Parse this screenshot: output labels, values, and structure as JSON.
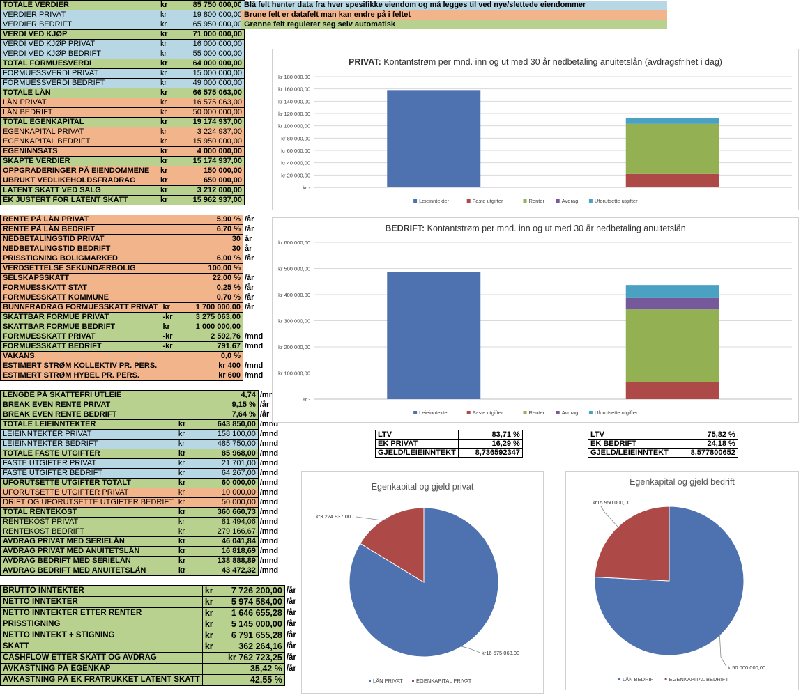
{
  "legend": [
    {
      "text": "Blå felt henter data fra hver spesifikke eiendom og må legges til ved nye/slettede eiendommer",
      "color": "#b6d7e3"
    },
    {
      "text": "Brune felt er datafelt man kan endre på i feltet",
      "color": "#f2b48a"
    },
    {
      "text": "Grønne felt regulerer seg selv automatisk",
      "color": "#b9d18f"
    }
  ],
  "table1": [
    {
      "label": "TOTALE VERDIER",
      "cur": "kr",
      "value": "85 750 000,00",
      "color": "g"
    },
    {
      "label": "VERDIER PRIVAT",
      "cur": "kr",
      "value": "19 800 000,00",
      "color": "b"
    },
    {
      "label": "VERDIER BEDRIFT",
      "cur": "kr",
      "value": "65 950 000,00",
      "color": "b"
    },
    {
      "label": "VERDI VED KJØP",
      "cur": "kr",
      "value": "71 000 000,00",
      "color": "g"
    },
    {
      "label": "VERDI VED KJØP PRIVAT",
      "cur": "kr",
      "value": "16 000 000,00",
      "color": "b"
    },
    {
      "label": "VERDI VED KJØP BEDRIFT",
      "cur": "kr",
      "value": "55 000 000,00",
      "color": "b"
    },
    {
      "label": "TOTAL FORMUESVERDI",
      "cur": "kr",
      "value": "64 000 000,00",
      "color": "g"
    },
    {
      "label": "FORMUESSVERDI PRIVAT",
      "cur": "kr",
      "value": "15 000 000,00",
      "color": "b"
    },
    {
      "label": "FORMUESSVERDI BEDRIFT",
      "cur": "kr",
      "value": "49 000 000,00",
      "color": "b"
    },
    {
      "label": "TOTALE LÅN",
      "cur": "kr",
      "value": "66 575 063,00",
      "color": "g"
    },
    {
      "label": "LÅN PRIVAT",
      "cur": "kr",
      "value": "16 575 063,00",
      "color": "on"
    },
    {
      "label": "LÅN BEDRIFT",
      "cur": "kr",
      "value": "50 000 000,00",
      "color": "on"
    },
    {
      "label": "TOTAL EGENKAPITAL",
      "cur": "kr",
      "value": "19 174 937,00",
      "color": "g"
    },
    {
      "label": "EGENKAPITAL PRIVAT",
      "cur": "kr",
      "value": "3 224 937,00",
      "color": "on"
    },
    {
      "label": "EGENKAPITAL BEDRIFT",
      "cur": "kr",
      "value": "15 950 000,00",
      "color": "on"
    },
    {
      "label": "EGENINNSATS",
      "cur": "kr",
      "value": "4 000 000,00",
      "color": "o"
    },
    {
      "label": "SKAPTE VERDIER",
      "cur": "kr",
      "value": "15 174 937,00",
      "color": "g"
    },
    {
      "label": "OPPGRADERINGER PÅ EIENDOMMENE",
      "cur": "kr",
      "value": "150 000,00",
      "color": "o"
    },
    {
      "label": "UBRUKT VEDLIKEHOLDSFRADRAG",
      "cur": "kr",
      "value": "650 000,00",
      "color": "o"
    },
    {
      "label": "LATENT SKATT VED SALG",
      "cur": "kr",
      "value": "3 212 000,00",
      "color": "g"
    },
    {
      "label": "EK JUSTERT FOR LATENT SKATT",
      "cur": "kr",
      "value": "15 962 937,00",
      "color": "g"
    }
  ],
  "table2": [
    {
      "label": "RENTE PÅ LÅN PRIVAT",
      "cur": "",
      "value": "5,90 %",
      "unit": "/år",
      "color": "o"
    },
    {
      "label": "RENTE PÅ LÅN BEDRIFT",
      "cur": "",
      "value": "6,70 %",
      "unit": "/år",
      "color": "o"
    },
    {
      "label": "NEDBETALINGSTID PRIVAT",
      "cur": "",
      "value": "30",
      "unit": "år",
      "color": "o"
    },
    {
      "label": "NEDBETALINGSTID BEDRIFT",
      "cur": "",
      "value": "30",
      "unit": "år",
      "color": "o"
    },
    {
      "label": "PRISSTIGNING BOLIGMARKED",
      "cur": "",
      "value": "6,00 %",
      "unit": "/år",
      "color": "o"
    },
    {
      "label": "VERDSETTELSE SEKUNDÆRBOLIG",
      "cur": "",
      "value": "100,00 %",
      "unit": "",
      "color": "o"
    },
    {
      "label": "SELSKAPSSKATT",
      "cur": "",
      "value": "22,00 %",
      "unit": "/år",
      "color": "o"
    },
    {
      "label": "FORMUESSKATT STAT",
      "cur": "",
      "value": "0,25 %",
      "unit": "/år",
      "color": "o"
    },
    {
      "label": "FORMUESSKATT KOMMUNE",
      "cur": "",
      "value": "0,70 %",
      "unit": "/år",
      "color": "o"
    },
    {
      "label": "BUNNFRADRAG FORMUESSKATT PRIVAT",
      "cur": "kr",
      "value": "1 700 000,00",
      "unit": "/år",
      "color": "o"
    },
    {
      "label": "SKATTBAR FORMUE PRIVAT",
      "cur": "-kr",
      "value": "3 275 063,00",
      "unit": "",
      "color": "g"
    },
    {
      "label": "SKATTBAR FORMUE BEDRIFT",
      "cur": "kr",
      "value": "1 000 000,00",
      "unit": "",
      "color": "g"
    },
    {
      "label": "FORMUESSKATT PRIVAT",
      "cur": "-kr",
      "value": "2 592,76",
      "unit": "/mnd",
      "color": "g"
    },
    {
      "label": "FORMUESSKATT BEDRIFT",
      "cur": "-kr",
      "value": "791,67",
      "unit": "/mnd",
      "color": "g"
    },
    {
      "label": "VAKANS",
      "cur": "",
      "value": "0,0 %",
      "unit": "",
      "color": "o"
    },
    {
      "label": "ESTIMERT STRØM KOLLEKTIV PR. PERS.",
      "cur": "",
      "value": "kr 400",
      "unit": "/mnd",
      "color": "o"
    },
    {
      "label": "ESTIMERT STRØM HYBEL PR. PERS.",
      "cur": "",
      "value": "kr 600",
      "unit": "/mnd",
      "color": "o"
    }
  ],
  "table3": [
    {
      "label": "LENGDE PÅ SKATTEFRI UTLEIE",
      "cur": "",
      "value": "4,74",
      "unit": "/mnd",
      "color": "g"
    },
    {
      "label": "BREAK EVEN RENTE PRIVAT",
      "cur": "",
      "value": "9,15 %",
      "unit": "/år",
      "color": "g"
    },
    {
      "label": "BREAK EVEN RENTE BEDRIFT",
      "cur": "",
      "value": "7,64 %",
      "unit": "/år",
      "color": "g"
    },
    {
      "label": "TOTALE LEIEINNTEKTER",
      "cur": "kr",
      "value": "643 850,00",
      "unit": "/mnd",
      "color": "g"
    },
    {
      "label": "LEIEINNTEKTER PRIVAT",
      "cur": "kr",
      "value": "158 100,00",
      "unit": "/mnd",
      "color": "b"
    },
    {
      "label": "LEIEINNTEKTER BEDRIFT",
      "cur": "kr",
      "value": "485 750,00",
      "unit": "/mnd",
      "color": "b"
    },
    {
      "label": "TOTALE FASTE UTGIFTER",
      "cur": "kr",
      "value": "85 968,00",
      "unit": "/mnd",
      "color": "g"
    },
    {
      "label": "FASTE UTGIFTER PRIVAT",
      "cur": "kr",
      "value": "21 701,00",
      "unit": "/mnd",
      "color": "b"
    },
    {
      "label": "FASTE UTGIFTER BEDRIFT",
      "cur": "kr",
      "value": "64 267,00",
      "unit": "/mnd",
      "color": "b"
    },
    {
      "label": "UFORUTSETTE UTGIFTER TOTALT",
      "cur": "kr",
      "value": "60 000,00",
      "unit": "/mnd",
      "color": "g"
    },
    {
      "label": "UFORUTSETTE UTGIFTER PRIVAT",
      "cur": "kr",
      "value": "10 000,00",
      "unit": "/mnd",
      "color": "on"
    },
    {
      "label": "DRIFT OG UFORUTSETTE UTGIFTER BEDRIFT",
      "cur": "kr",
      "value": "50 000,00",
      "unit": "/mnd",
      "color": "on"
    },
    {
      "label": "TOTAL RENTEKOST",
      "cur": "kr",
      "value": "360 660,73",
      "unit": "/mnd",
      "color": "g"
    },
    {
      "label": "RENTEKOST PRIVAT",
      "cur": "kr",
      "value": "81 494,06",
      "unit": "/mnd",
      "color": "gn"
    },
    {
      "label": "RENTEKOST BEDRIFT",
      "cur": "kr",
      "value": "279 166,67",
      "unit": "/mnd",
      "color": "gn"
    },
    {
      "label": "AVDRAG PRIVAT MED SERIELÅN",
      "cur": "kr",
      "value": "46 041,84",
      "unit": "/mnd",
      "color": "g"
    },
    {
      "label": "AVDRAG PRIVAT MED ANUITETSLÅN",
      "cur": "kr",
      "value": "16 818,69",
      "unit": "/mnd",
      "color": "g"
    },
    {
      "label": "AVDRAG BEDRIFT MED SERIELÅN",
      "cur": "kr",
      "value": "138 888,89",
      "unit": "/mnd",
      "color": "g"
    },
    {
      "label": "AVDRAG BEDRIFT MED ANUITETSLÅN",
      "cur": "kr",
      "value": "43 472,32",
      "unit": "/mnd",
      "color": "g"
    }
  ],
  "table4": [
    {
      "label": "BRUTTO INNTEKTER",
      "cur": "kr",
      "value": "7 726 200,00",
      "unit": "/år",
      "color": "g"
    },
    {
      "label": "NETTO INNTEKTER",
      "cur": "kr",
      "value": "5 974 584,00",
      "unit": "/år",
      "color": "g"
    },
    {
      "label": "NETTO INNTEKTER ETTER RENTER",
      "cur": "kr",
      "value": "1 646 655,28",
      "unit": "/år",
      "color": "g"
    },
    {
      "label": "PRISSTIGNING",
      "cur": "kr",
      "value": "5 145 000,00",
      "unit": "/år",
      "color": "g"
    },
    {
      "label": "NETTO INNTEKT + STIGNING",
      "cur": "kr",
      "value": "6 791 655,28",
      "unit": "/år",
      "color": "g"
    },
    {
      "label": "SKATT",
      "cur": "kr",
      "value": "362 264,16",
      "unit": "/år",
      "color": "g"
    },
    {
      "label": "CASHFLOW ETTER SKATT OG AVDRAG",
      "cur": "",
      "value": "kr 762 723,25",
      "unit": "/år",
      "color": "g"
    },
    {
      "label": "AVKASTNING PÅ EGENKAP",
      "cur": "",
      "value": "35,42 %",
      "unit": "/år",
      "color": "g"
    },
    {
      "label": "AVKASTNING PÅ EK FRATRUKKET LATENT SKATT",
      "cur": "",
      "value": "42,55 %",
      "unit": "",
      "color": "g"
    }
  ],
  "ratios_privat": [
    {
      "label": "LTV",
      "value": "83,71 %"
    },
    {
      "label": "EK PRIVAT",
      "value": "16,29 %"
    },
    {
      "label": "GJELD/LEIEINNTEKT",
      "value": "8,736592347"
    }
  ],
  "ratios_bedrift": [
    {
      "label": "LTV",
      "value": "75,82 %"
    },
    {
      "label": "EK BEDRIFT",
      "value": "24,18 %"
    },
    {
      "label": "GJELD/LEIEINNTEKT",
      "value": "8,577800652"
    }
  ],
  "chart_data": [
    {
      "type": "bar",
      "title_bold": "PRIVAT:",
      "title_rest": " Kontantstrøm per mnd. inn og ut med 30 år nedbetaling anuitetslån (avdragsfrihet i dag)",
      "ylim": [
        0,
        180000
      ],
      "ytick_labels": [
        "kr -",
        "kr 20 000,00",
        "kr 40 000,00",
        "kr 60 000,00",
        "kr 80 000,00",
        "kr 100 000,00",
        "kr 120 000,00",
        "kr 140 000,00",
        "kr 160 000,00",
        "kr 180 000,00"
      ],
      "stacks": [
        [
          {
            "name": "Leieinntekter",
            "value": 158100
          }
        ],
        [
          {
            "name": "Faste utgifter",
            "value": 21701
          },
          {
            "name": "Renter",
            "value": 81494
          },
          {
            "name": "Avdrag",
            "value": 0
          },
          {
            "name": "Uforutsette utgifter",
            "value": 10000
          }
        ]
      ],
      "legend": [
        "Leieinntekter",
        "Faste utgifter",
        "Renter",
        "Avdrag",
        "Uforutsette utgifter"
      ],
      "colors": [
        "#4e72b0",
        "#ad4a47",
        "#93b052",
        "#76599a",
        "#4aa1c2"
      ]
    },
    {
      "type": "bar",
      "title_bold": "BEDRIFT:",
      "title_rest": " Kontantstrøm per mnd. inn og ut med 30 år nedbetaling anuitetslån",
      "ylim": [
        0,
        600000
      ],
      "ytick_labels": [
        "kr -",
        "kr 100 000,00",
        "kr 200 000,00",
        "kr 300 000,00",
        "kr 400 000,00",
        "kr 500 000,00",
        "kr 600 000,00"
      ],
      "stacks": [
        [
          {
            "name": "Leieinntekter",
            "value": 485750
          }
        ],
        [
          {
            "name": "Faste utgifter",
            "value": 64267
          },
          {
            "name": "Renter",
            "value": 279167
          },
          {
            "name": "Avdrag",
            "value": 43472
          },
          {
            "name": "Uforutsette utgifter",
            "value": 50000
          }
        ]
      ],
      "legend": [
        "Leieinntekter",
        "Faste utgifter",
        "Renter",
        "Avdrag",
        "Uforutsette utgifter"
      ],
      "colors": [
        "#4e72b0",
        "#ad4a47",
        "#93b052",
        "#76599a",
        "#4aa1c2"
      ]
    },
    {
      "type": "pie",
      "title": "Egenkapital og gjeld privat",
      "slices": [
        {
          "name": "LÅN PRIVAT",
          "value": 16575063,
          "label": "kr16 575 063,00",
          "color": "#4e72b0"
        },
        {
          "name": "EGENKAPITAL PRIVAT",
          "value": 3224937,
          "label": "kr3 224 937,00",
          "color": "#ad4a47"
        }
      ]
    },
    {
      "type": "pie",
      "title": "Egenkapital og gjeld bedrift",
      "slices": [
        {
          "name": "LÅN BEDRIFT",
          "value": 50000000,
          "label": "kr50 000 000,00",
          "color": "#4e72b0"
        },
        {
          "name": "EGENKAPITAL BEDRIFT",
          "value": 15950000,
          "label": "kr15 950 000,00",
          "color": "#ad4a47"
        }
      ]
    }
  ]
}
